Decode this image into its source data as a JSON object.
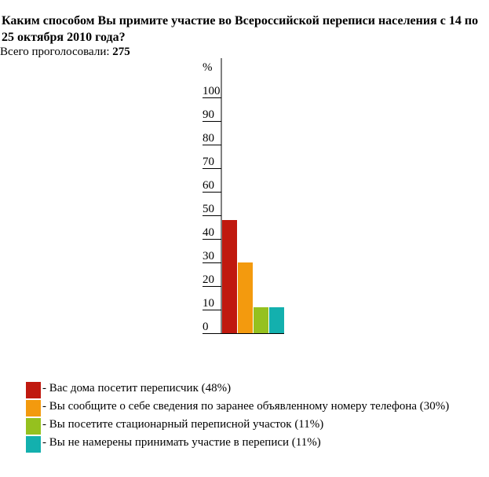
{
  "poll": {
    "title": "Каким способом Вы примите участие во Всероссийской переписи населения с 14 по 25 октября 2010 года?",
    "total_label": "Всего проголосовали:",
    "total_value": "275"
  },
  "chart_data": {
    "type": "bar",
    "title": "Каким способом Вы примите участие во Всероссийской переписи населения с 14 по 25 октября 2010 года?",
    "ylabel": "%",
    "ylim": [
      0,
      100
    ],
    "yticks": [
      "0",
      "10",
      "20",
      "30",
      "40",
      "50",
      "60",
      "70",
      "80",
      "90",
      "100"
    ],
    "grid": false,
    "legend_position": "bottom",
    "categories": [
      "- Вас дома посетит переписчик (48%)",
      "- Вы сообщите о себе сведения по заранее объявленному номеру телефона (30%)",
      "- Вы посетите стационарный переписной участок (11%)",
      "- Вы не намерены принимать участие в переписи (11%)"
    ],
    "values": [
      48,
      30,
      11,
      11
    ],
    "colors": [
      "#c0190f",
      "#f39a0e",
      "#95c11f",
      "#13b0ae"
    ]
  }
}
